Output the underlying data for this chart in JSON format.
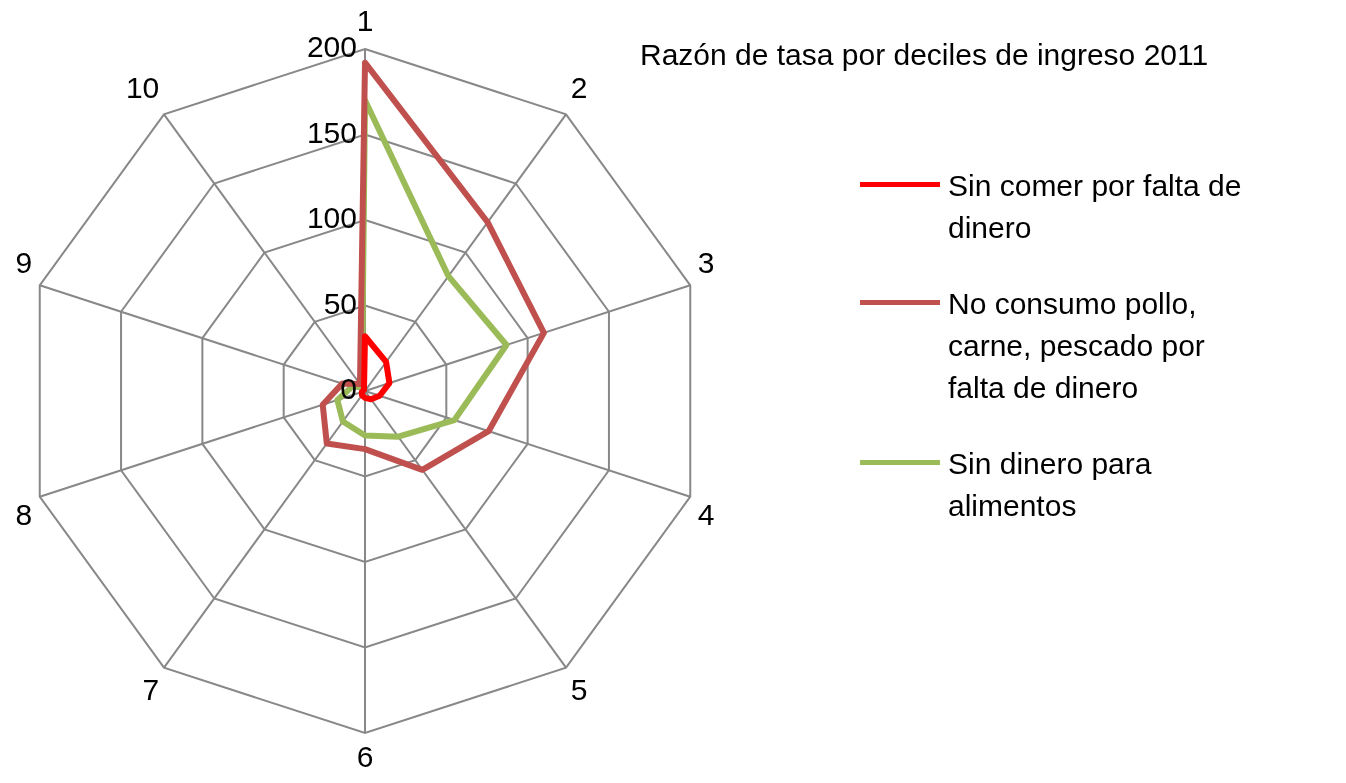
{
  "chart_data": {
    "type": "radar",
    "title": "Razón de tasa por deciles de ingreso 2011",
    "categories": [
      "1",
      "2",
      "3",
      "4",
      "5",
      "6",
      "7",
      "8",
      "9",
      "10"
    ],
    "series": [
      {
        "name": "Sin comer por falta de dinero",
        "color": "#ff0000",
        "values": [
          32,
          21,
          15,
          9,
          6,
          4,
          3,
          2,
          1,
          1
        ]
      },
      {
        "name": "No consumo pollo, carne, pescado por falta de dinero",
        "color": "#c0504d",
        "values": [
          192,
          122,
          110,
          76,
          57,
          34,
          38,
          26,
          14,
          5
        ]
      },
      {
        "name": "Sin dinero para alimentos",
        "color": "#9bbb59",
        "values": [
          170,
          83,
          87,
          55,
          33,
          26,
          22,
          17,
          8,
          3
        ]
      }
    ],
    "ylim": [
      0,
      200
    ],
    "yticks": [
      0,
      50,
      100,
      150,
      200
    ],
    "grid": true,
    "legend": "right",
    "marker": "none",
    "line_style": "solid"
  }
}
